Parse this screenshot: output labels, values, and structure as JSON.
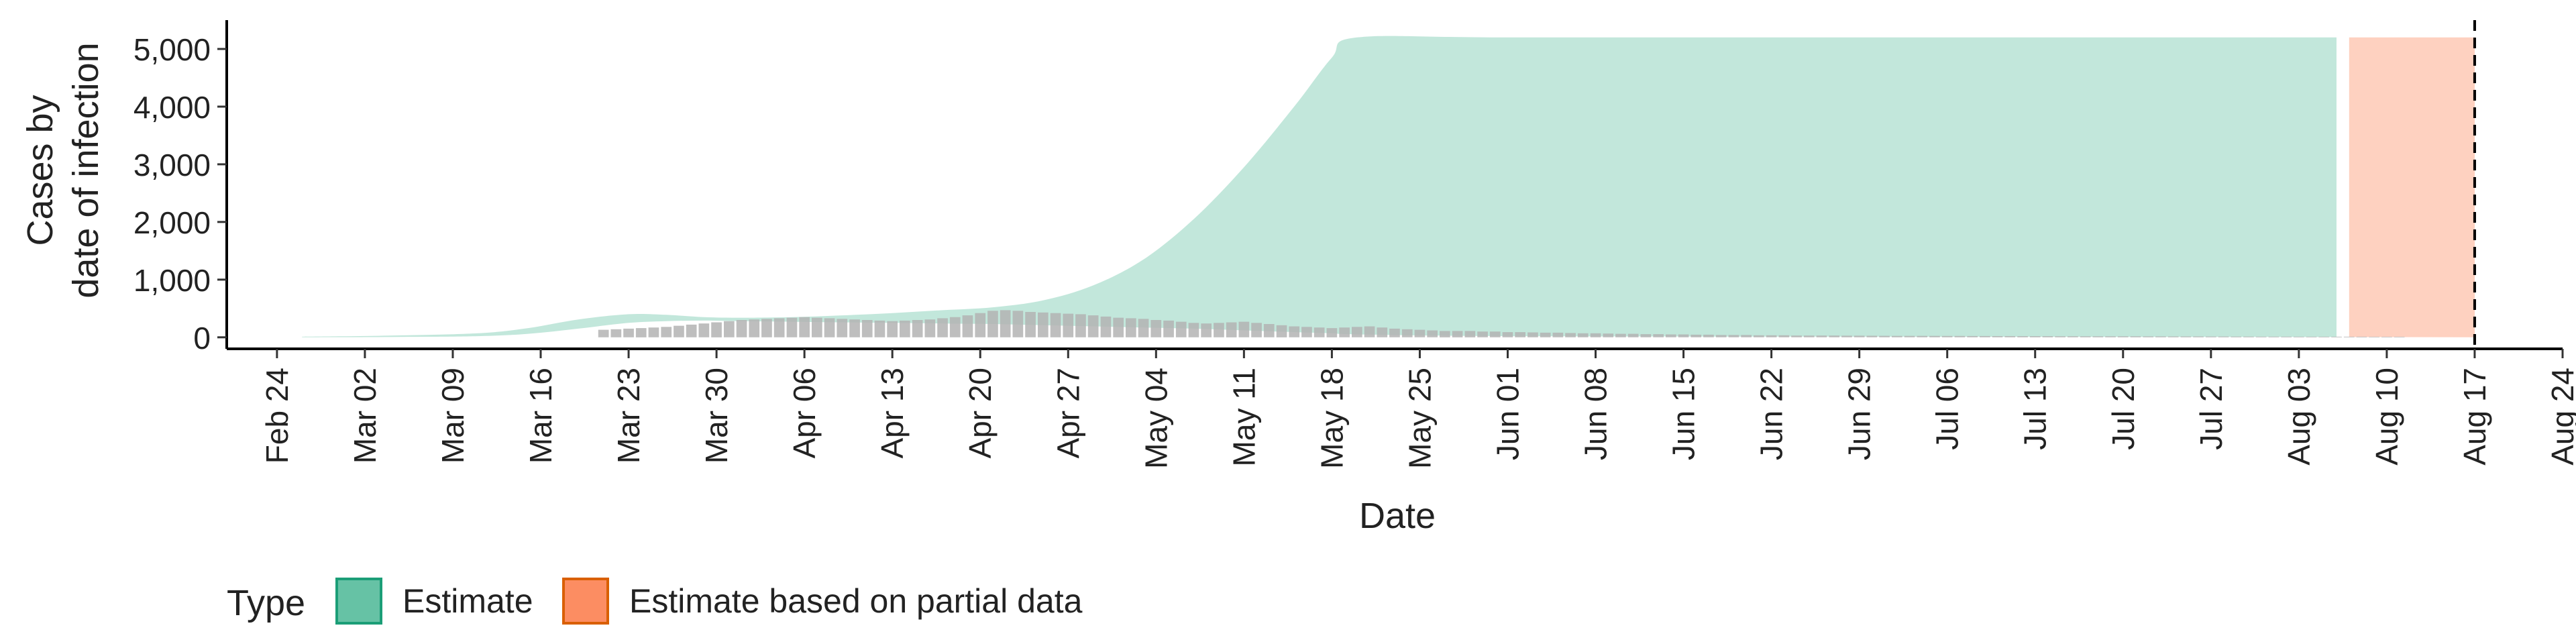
{
  "chart_data": {
    "type": "area",
    "xlabel": "Date",
    "ylabel_lines": [
      "Cases by",
      "date of infection"
    ],
    "xlim": [
      "2020-02-20",
      "2020-08-24"
    ],
    "ylim": [
      -200,
      5500
    ],
    "y_ticks": [
      0,
      1000,
      2000,
      3000,
      4000,
      5000
    ],
    "y_tick_labels": [
      "0",
      "1,000",
      "2,000",
      "3,000",
      "4,000",
      "5,000"
    ],
    "x_ticks": [
      "2020-02-24",
      "2020-03-02",
      "2020-03-09",
      "2020-03-16",
      "2020-03-23",
      "2020-03-30",
      "2020-04-06",
      "2020-04-13",
      "2020-04-20",
      "2020-04-27",
      "2020-05-04",
      "2020-05-11",
      "2020-05-18",
      "2020-05-25",
      "2020-06-01",
      "2020-06-08",
      "2020-06-15",
      "2020-06-22",
      "2020-06-29",
      "2020-07-06",
      "2020-07-13",
      "2020-07-20",
      "2020-07-27",
      "2020-08-03",
      "2020-08-10",
      "2020-08-17",
      "2020-08-24"
    ],
    "x_tick_labels": [
      "Feb 24",
      "Mar 02",
      "Mar 09",
      "Mar 16",
      "Mar 23",
      "Mar 30",
      "Apr 06",
      "Apr 13",
      "Apr 20",
      "Apr 27",
      "May 04",
      "May 11",
      "May 18",
      "May 25",
      "Jun 01",
      "Jun 08",
      "Jun 15",
      "Jun 22",
      "Jun 29",
      "Jul 06",
      "Jul 13",
      "Jul 20",
      "Jul 27",
      "Aug 03",
      "Aug 10",
      "Aug 17",
      "Aug 24"
    ],
    "reference_line": "2020-08-17",
    "legend": {
      "title": "Type",
      "position": "bottom",
      "items": [
        {
          "label": "Estimate",
          "fill": "#66c2a5",
          "stroke": "#1b9e77"
        },
        {
          "label": "Estimate based on partial data",
          "fill": "#fc8d62",
          "stroke": "#d95f02"
        }
      ]
    },
    "series": [
      {
        "name": "Estimate",
        "color": "#66c2a5",
        "opacity": 0.4,
        "x": [
          "2020-02-26",
          "2020-03-04",
          "2020-03-11",
          "2020-03-15",
          "2020-03-19",
          "2020-03-23",
          "2020-03-26",
          "2020-03-29",
          "2020-04-01",
          "2020-04-05",
          "2020-04-09",
          "2020-04-13",
          "2020-04-17",
          "2020-04-21",
          "2020-04-25",
          "2020-04-29",
          "2020-05-03",
          "2020-05-07",
          "2020-05-11",
          "2020-05-15",
          "2020-05-18",
          "2020-05-20",
          "2020-06-01",
          "2020-07-01",
          "2020-08-06"
        ],
        "upper": [
          10,
          30,
          70,
          160,
          310,
          400,
          390,
          350,
          340,
          350,
          380,
          420,
          470,
          520,
          640,
          900,
          1350,
          2050,
          2950,
          4000,
          4850,
          5200,
          5200,
          5200,
          5200
        ],
        "lower": [
          0,
          5,
          20,
          60,
          150,
          250,
          280,
          290,
          280,
          270,
          260,
          250,
          240,
          230,
          210,
          190,
          170,
          150,
          120,
          90,
          70,
          50,
          20,
          10,
          5
        ]
      },
      {
        "name": "Estimate based on partial data",
        "color": "#fc8d62",
        "opacity": 0.4,
        "x": [
          "2020-08-07",
          "2020-08-17"
        ],
        "upper": [
          5200,
          5200
        ],
        "lower": [
          5,
          0
        ]
      }
    ],
    "reported_cases": {
      "color": "#b3b3b3",
      "start": "2020-03-21",
      "values": [
        130,
        140,
        150,
        160,
        170,
        180,
        200,
        220,
        240,
        260,
        280,
        300,
        310,
        320,
        330,
        340,
        350,
        340,
        330,
        320,
        310,
        300,
        290,
        280,
        290,
        300,
        310,
        330,
        350,
        380,
        420,
        460,
        470,
        460,
        440,
        430,
        420,
        410,
        400,
        380,
        360,
        340,
        330,
        320,
        300,
        290,
        270,
        250,
        240,
        250,
        260,
        270,
        250,
        230,
        210,
        190,
        180,
        170,
        160,
        170,
        180,
        190,
        170,
        150,
        140,
        130,
        120,
        110,
        110,
        110,
        100,
        100,
        90,
        90,
        85,
        80,
        80,
        75,
        70,
        70,
        65,
        60,
        60,
        55,
        55,
        50,
        50,
        45,
        45,
        40,
        40,
        40,
        35,
        35,
        35,
        30,
        30,
        30,
        30,
        28,
        28,
        27,
        26,
        25,
        25,
        24,
        24,
        23,
        23,
        22,
        22,
        21,
        21,
        20,
        20,
        20,
        19,
        19,
        18,
        18,
        18,
        17,
        17,
        16,
        16,
        15,
        15,
        15,
        14,
        14,
        13,
        13,
        12,
        12,
        12,
        11,
        11,
        10,
        10,
        10,
        10,
        9,
        9,
        9
      ]
    }
  }
}
